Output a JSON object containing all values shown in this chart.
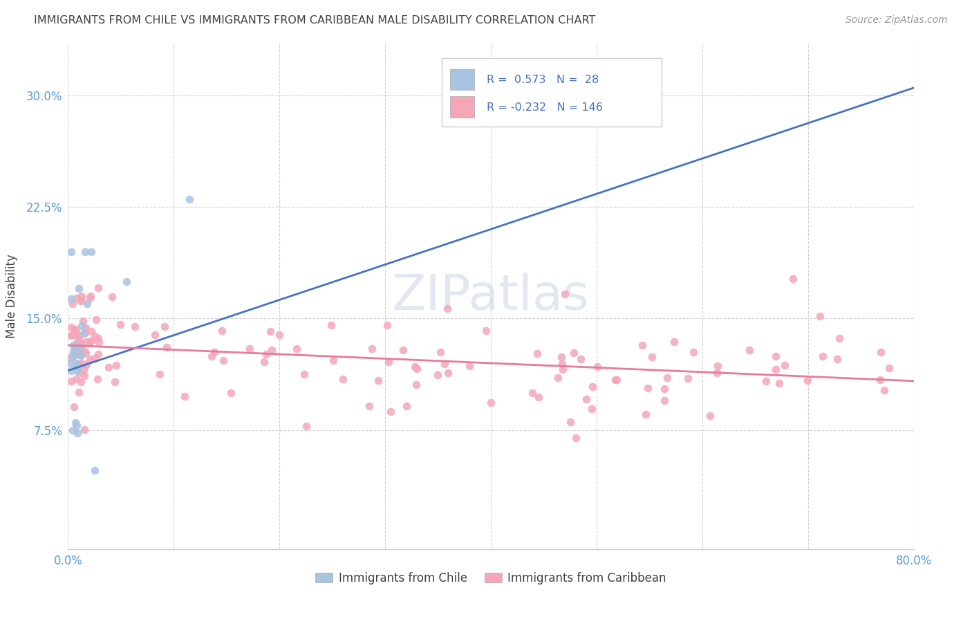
{
  "title": "IMMIGRANTS FROM CHILE VS IMMIGRANTS FROM CARIBBEAN MALE DISABILITY CORRELATION CHART",
  "source": "Source: ZipAtlas.com",
  "ylabel": "Male Disability",
  "chile_R": 0.573,
  "chile_N": 28,
  "caribbean_R": -0.232,
  "caribbean_N": 146,
  "chile_color": "#a8c4e0",
  "caribbean_color": "#f4a7b9",
  "chile_line_color": "#4472c4",
  "caribbean_line_color": "#e8799a",
  "title_color": "#404040",
  "axis_color": "#5b9bd5",
  "legend_R_color": "#4472c4",
  "watermark": "ZIPatlas",
  "background_color": "#ffffff",
  "grid_color": "#c8c8c8",
  "xlim": [
    0.0,
    0.8
  ],
  "ylim": [
    -0.005,
    0.335
  ],
  "yticks": [
    0.075,
    0.15,
    0.225,
    0.3
  ],
  "ytick_labels": [
    "7.5%",
    "15.0%",
    "22.5%",
    "30.0%"
  ],
  "xticks": [
    0.0,
    0.1,
    0.2,
    0.3,
    0.4,
    0.5,
    0.6,
    0.7,
    0.8
  ],
  "chile_line_x0": 0.0,
  "chile_line_y0": 0.115,
  "chile_line_x1": 0.8,
  "chile_line_y1": 0.305,
  "caribbean_line_x0": 0.0,
  "caribbean_line_y0": 0.132,
  "caribbean_line_x1": 0.8,
  "caribbean_line_y1": 0.108
}
